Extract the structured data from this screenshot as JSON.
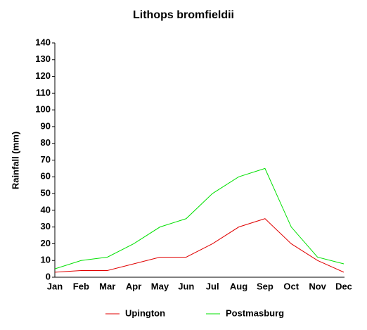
{
  "chart_data": {
    "type": "line",
    "title": "Lithops bromfieldii",
    "y_label": "Rainfall (mm)",
    "categories": [
      "Jan",
      "Feb",
      "Mar",
      "Apr",
      "May",
      "Jun",
      "Jul",
      "Aug",
      "Sep",
      "Oct",
      "Nov",
      "Dec"
    ],
    "series": [
      {
        "name": "Upington",
        "color": "#e00000",
        "values": [
          3,
          4,
          4,
          8,
          12,
          12,
          20,
          30,
          35,
          20,
          10,
          3
        ]
      },
      {
        "name": "Postmasburg",
        "color": "#00e000",
        "values": [
          5,
          10,
          12,
          20,
          30,
          35,
          50,
          60,
          65,
          30,
          12,
          8
        ]
      }
    ],
    "ylim": [
      0,
      140
    ],
    "yticks": [
      0,
      10,
      20,
      30,
      40,
      50,
      60,
      70,
      80,
      90,
      100,
      110,
      120,
      130,
      140
    ],
    "grid": false,
    "legend": "bottom"
  }
}
